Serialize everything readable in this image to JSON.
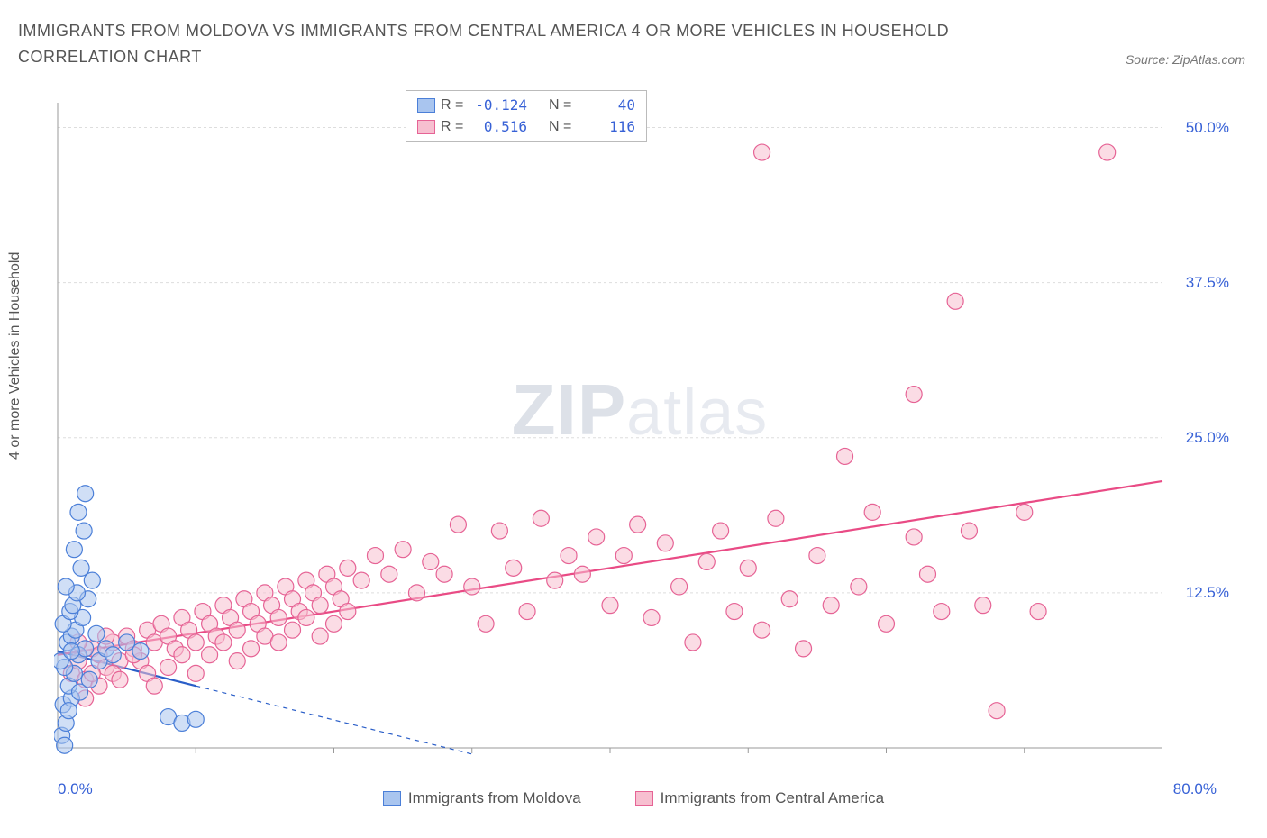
{
  "title": "IMMIGRANTS FROM MOLDOVA VS IMMIGRANTS FROM CENTRAL AMERICA 4 OR MORE VEHICLES IN HOUSEHOLD CORRELATION CHART",
  "source_label": "Source: ZipAtlas.com",
  "watermark_zip": "ZIP",
  "watermark_atlas": "atlas",
  "chart": {
    "type": "scatter",
    "background_color": "#ffffff",
    "grid_color": "#dddddd",
    "axis_color": "#999999",
    "ylabel": "4 or more Vehicles in Household",
    "ylabel_color": "#555555",
    "xlim": [
      0,
      80
    ],
    "ylim": [
      0,
      52
    ],
    "xticks": [
      0,
      80
    ],
    "xtick_labels": [
      "0.0%",
      "80.0%"
    ],
    "ytick_positions": [
      12.5,
      25,
      37.5,
      50
    ],
    "ytick_labels": [
      "12.5%",
      "25.0%",
      "37.5%",
      "50.0%"
    ],
    "x_minor_ticks": [
      10,
      20,
      30,
      40,
      50,
      60,
      70
    ],
    "marker_radius": 9,
    "marker_stroke_width": 1.2,
    "series": [
      {
        "name": "Immigrants from Moldova",
        "fill_color": "#a9c5ef",
        "stroke_color": "#4b7fd8",
        "fill_opacity": 0.55,
        "r_label": "R =",
        "r_value": "-0.124",
        "n_label": "N =",
        "n_value": "40",
        "regression": {
          "x1": 0,
          "y1": 7.8,
          "x2": 10,
          "y2": 5.0,
          "extrap_x2": 30,
          "extrap_y2": -0.5,
          "solid_color": "#2a5ec8",
          "dash_color": "#2a5ec8"
        },
        "points": [
          [
            0.3,
            1.0
          ],
          [
            0.5,
            0.2
          ],
          [
            0.6,
            2.0
          ],
          [
            0.4,
            3.5
          ],
          [
            1.0,
            4.0
          ],
          [
            0.8,
            5.0
          ],
          [
            1.2,
            6.0
          ],
          [
            0.5,
            6.5
          ],
          [
            0.2,
            7.0
          ],
          [
            1.5,
            7.5
          ],
          [
            2.0,
            8.0
          ],
          [
            0.7,
            8.5
          ],
          [
            1.0,
            9.0
          ],
          [
            1.3,
            9.5
          ],
          [
            0.4,
            10.0
          ],
          [
            1.8,
            10.5
          ],
          [
            0.9,
            11.0
          ],
          [
            1.1,
            11.5
          ],
          [
            2.2,
            12.0
          ],
          [
            1.4,
            12.5
          ],
          [
            0.6,
            13.0
          ],
          [
            2.5,
            13.5
          ],
          [
            1.7,
            14.5
          ],
          [
            1.2,
            16.0
          ],
          [
            1.9,
            17.5
          ],
          [
            1.5,
            19.0
          ],
          [
            2.0,
            20.5
          ],
          [
            0.8,
            3.0
          ],
          [
            1.6,
            4.5
          ],
          [
            2.3,
            5.5
          ],
          [
            3.0,
            7.0
          ],
          [
            3.5,
            8.0
          ],
          [
            4.0,
            7.5
          ],
          [
            5.0,
            8.5
          ],
          [
            6.0,
            7.8
          ],
          [
            8.0,
            2.5
          ],
          [
            9.0,
            2.0
          ],
          [
            10.0,
            2.3
          ],
          [
            1.0,
            7.8
          ],
          [
            2.8,
            9.2
          ]
        ]
      },
      {
        "name": "Immigrants from Central America",
        "fill_color": "#f7bfd0",
        "stroke_color": "#e66395",
        "fill_opacity": 0.55,
        "r_label": "R =",
        "r_value": "0.516",
        "n_label": "N =",
        "n_value": "116",
        "regression": {
          "x1": 0,
          "y1": 7.5,
          "x2": 80,
          "y2": 21.5,
          "solid_color": "#e94b85",
          "dash_color": "#e94b85"
        },
        "points": [
          [
            1.0,
            6.0
          ],
          [
            1.5,
            7.0
          ],
          [
            2.0,
            5.5
          ],
          [
            2.5,
            8.0
          ],
          [
            3.0,
            7.5
          ],
          [
            3.5,
            6.5
          ],
          [
            4.0,
            8.5
          ],
          [
            4.5,
            7.0
          ],
          [
            5.0,
            9.0
          ],
          [
            5.5,
            8.0
          ],
          [
            6.0,
            7.0
          ],
          [
            6.5,
            9.5
          ],
          [
            7.0,
            8.5
          ],
          [
            7.5,
            10.0
          ],
          [
            8.0,
            9.0
          ],
          [
            8.5,
            8.0
          ],
          [
            9.0,
            10.5
          ],
          [
            9.5,
            9.5
          ],
          [
            10.0,
            8.5
          ],
          [
            10.5,
            11.0
          ],
          [
            11.0,
            10.0
          ],
          [
            11.5,
            9.0
          ],
          [
            12.0,
            11.5
          ],
          [
            12.5,
            10.5
          ],
          [
            13.0,
            9.5
          ],
          [
            13.5,
            12.0
          ],
          [
            14.0,
            11.0
          ],
          [
            14.5,
            10.0
          ],
          [
            15.0,
            12.5
          ],
          [
            15.5,
            11.5
          ],
          [
            16.0,
            10.5
          ],
          [
            16.5,
            13.0
          ],
          [
            17.0,
            12.0
          ],
          [
            17.5,
            11.0
          ],
          [
            18.0,
            13.5
          ],
          [
            18.5,
            12.5
          ],
          [
            19.0,
            11.5
          ],
          [
            19.5,
            14.0
          ],
          [
            20.0,
            13.0
          ],
          [
            20.5,
            12.0
          ],
          [
            21.0,
            14.5
          ],
          [
            22.0,
            13.5
          ],
          [
            23.0,
            15.5
          ],
          [
            24.0,
            14.0
          ],
          [
            25.0,
            16.0
          ],
          [
            26.0,
            12.5
          ],
          [
            27.0,
            15.0
          ],
          [
            28.0,
            14.0
          ],
          [
            29.0,
            18.0
          ],
          [
            30.0,
            13.0
          ],
          [
            31.0,
            10.0
          ],
          [
            32.0,
            17.5
          ],
          [
            33.0,
            14.5
          ],
          [
            34.0,
            11.0
          ],
          [
            35.0,
            18.5
          ],
          [
            36.0,
            13.5
          ],
          [
            37.0,
            15.5
          ],
          [
            38.0,
            14.0
          ],
          [
            39.0,
            17.0
          ],
          [
            40.0,
            11.5
          ],
          [
            41.0,
            15.5
          ],
          [
            42.0,
            18.0
          ],
          [
            43.0,
            10.5
          ],
          [
            44.0,
            16.5
          ],
          [
            45.0,
            13.0
          ],
          [
            46.0,
            8.5
          ],
          [
            47.0,
            15.0
          ],
          [
            48.0,
            17.5
          ],
          [
            49.0,
            11.0
          ],
          [
            50.0,
            14.5
          ],
          [
            51.0,
            9.5
          ],
          [
            52.0,
            18.5
          ],
          [
            53.0,
            12.0
          ],
          [
            54.0,
            8.0
          ],
          [
            55.0,
            15.5
          ],
          [
            56.0,
            11.5
          ],
          [
            58.0,
            13.0
          ],
          [
            60.0,
            10.0
          ],
          [
            62.0,
            17.0
          ],
          [
            51.0,
            48.0
          ],
          [
            76.0,
            48.0
          ],
          [
            65.0,
            36.0
          ],
          [
            62.0,
            28.5
          ],
          [
            57.0,
            23.5
          ],
          [
            59.0,
            19.0
          ],
          [
            63.0,
            14.0
          ],
          [
            64.0,
            11.0
          ],
          [
            66.0,
            17.5
          ],
          [
            67.0,
            11.5
          ],
          [
            70.0,
            19.0
          ],
          [
            71.0,
            11.0
          ],
          [
            68.0,
            3.0
          ],
          [
            2.0,
            4.0
          ],
          [
            3.0,
            5.0
          ],
          [
            4.0,
            6.0
          ],
          [
            1.5,
            8.5
          ],
          [
            2.5,
            6.0
          ],
          [
            3.5,
            9.0
          ],
          [
            4.5,
            5.5
          ],
          [
            5.5,
            7.5
          ],
          [
            6.5,
            6.0
          ],
          [
            7.0,
            5.0
          ],
          [
            8.0,
            6.5
          ],
          [
            9.0,
            7.5
          ],
          [
            10.0,
            6.0
          ],
          [
            11.0,
            7.5
          ],
          [
            12.0,
            8.5
          ],
          [
            13.0,
            7.0
          ],
          [
            14.0,
            8.0
          ],
          [
            15.0,
            9.0
          ],
          [
            16.0,
            8.5
          ],
          [
            17.0,
            9.5
          ],
          [
            18.0,
            10.5
          ],
          [
            19.0,
            9.0
          ],
          [
            20.0,
            10.0
          ],
          [
            21.0,
            11.0
          ]
        ]
      }
    ]
  },
  "legend_bottom": {
    "series1_label": "Immigrants from Moldova",
    "series2_label": "Immigrants from Central America"
  }
}
